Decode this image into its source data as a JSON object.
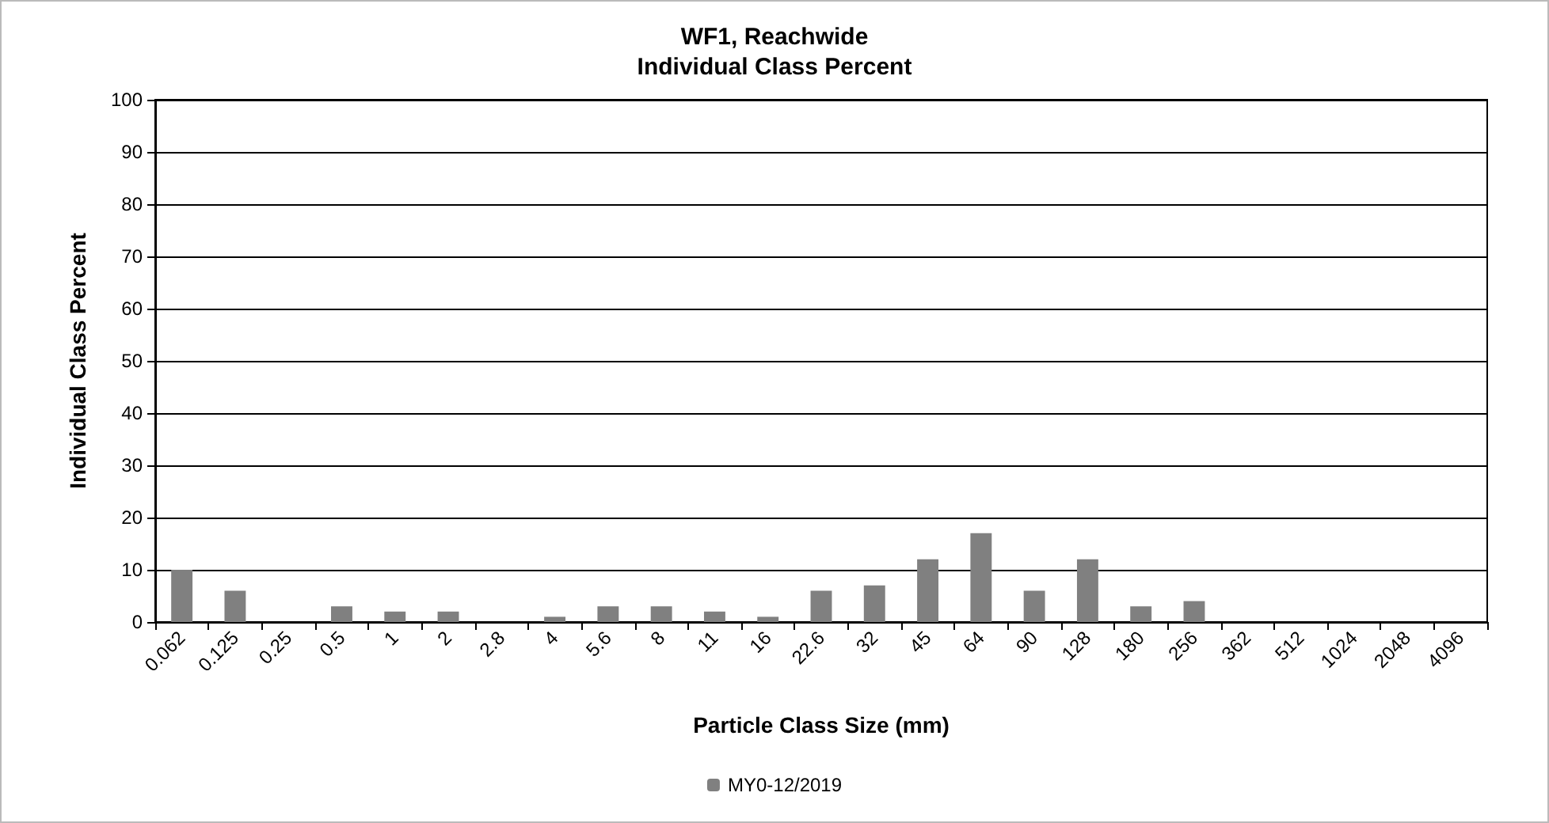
{
  "chart_data": {
    "type": "bar",
    "title": "WF1, Reachwide\nIndividual Class Percent",
    "xlabel": "Particle Class Size (mm)",
    "ylabel": "Individual Class Percent",
    "categories": [
      "0.062",
      "0.125",
      "0.25",
      "0.5",
      "1",
      "2",
      "2.8",
      "4",
      "5.6",
      "8",
      "11",
      "16",
      "22.6",
      "32",
      "45",
      "64",
      "90",
      "128",
      "180",
      "256",
      "362",
      "512",
      "1024",
      "2048",
      "4096"
    ],
    "series": [
      {
        "name": "MY0-12/2019",
        "color": "#808080",
        "values": [
          10,
          6,
          0,
          3,
          2,
          2,
          0,
          1,
          3,
          3,
          2,
          1,
          6,
          7,
          12,
          17,
          6,
          12,
          3,
          4,
          0,
          0,
          0,
          0,
          0
        ]
      }
    ],
    "ylim": [
      0,
      100
    ],
    "yticks": [
      0,
      10,
      20,
      30,
      40,
      50,
      60,
      70,
      80,
      90,
      100
    ],
    "grid": "y",
    "legend": "bottom"
  }
}
